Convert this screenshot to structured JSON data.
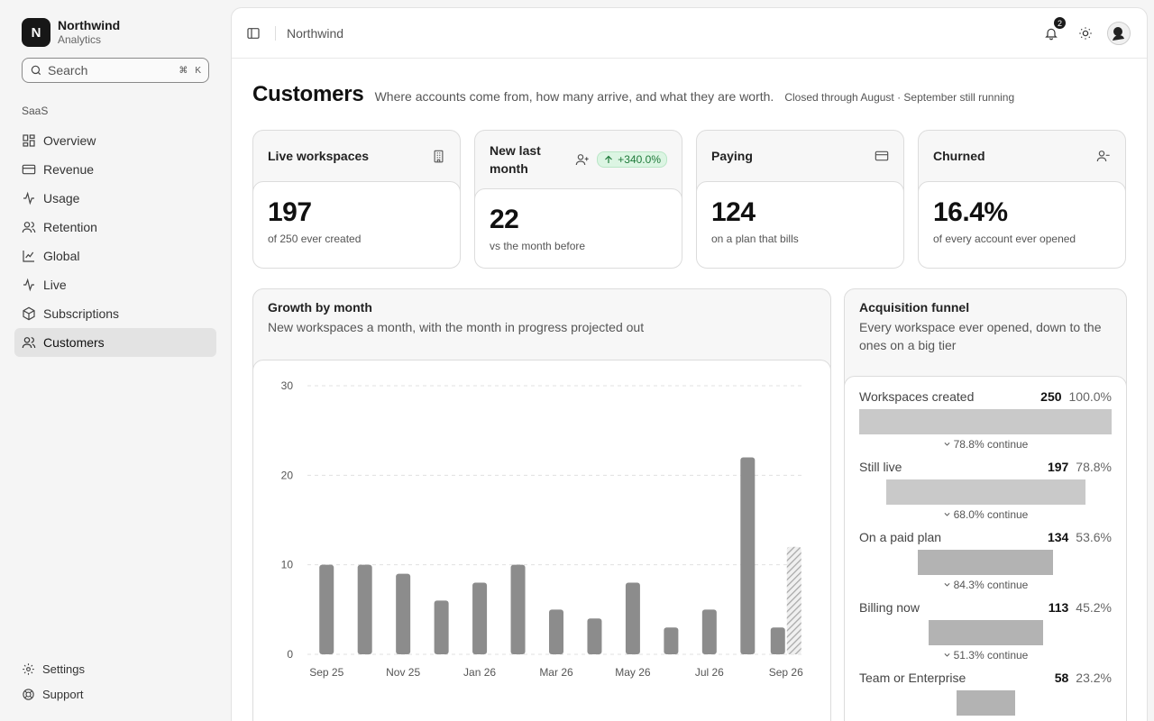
{
  "brand": {
    "initial": "N",
    "name": "Northwind",
    "sub": "Analytics"
  },
  "search": {
    "placeholder": "Search",
    "shortcut_1": "⌘",
    "shortcut_2": "K"
  },
  "sidebar": {
    "section": "SaaS",
    "items": [
      {
        "label": "Overview",
        "icon": "grid-icon"
      },
      {
        "label": "Revenue",
        "icon": "card-icon"
      },
      {
        "label": "Usage",
        "icon": "activity-icon"
      },
      {
        "label": "Retention",
        "icon": "users-icon"
      },
      {
        "label": "Global",
        "icon": "chart-line-icon"
      },
      {
        "label": "Live",
        "icon": "pulse-icon"
      },
      {
        "label": "Subscriptions",
        "icon": "box-icon"
      },
      {
        "label": "Customers",
        "icon": "users-icon",
        "active": true
      }
    ],
    "footer": [
      {
        "label": "Settings",
        "icon": "gear-icon"
      },
      {
        "label": "Support",
        "icon": "lifebuoy-icon"
      }
    ]
  },
  "topbar": {
    "breadcrumb": "Northwind",
    "notifications": "2"
  },
  "page": {
    "title": "Customers",
    "subtitle": "Where accounts come from, how many arrive, and what they are worth.",
    "note": "Closed through August · September still running"
  },
  "kpis": [
    {
      "label": "Live workspaces",
      "value": "197",
      "caption": "of 250 ever created",
      "icon": "building-icon"
    },
    {
      "label": "New last month",
      "value": "22",
      "caption": "vs the month before",
      "icon": "user-plus-icon",
      "delta": "+340.0%"
    },
    {
      "label": "Paying",
      "value": "124",
      "caption": "on a plan that bills",
      "icon": "card-icon"
    },
    {
      "label": "Churned",
      "value": "16.4%",
      "caption": "of every account ever opened",
      "icon": "user-minus-icon"
    }
  ],
  "growth": {
    "title": "Growth by month",
    "desc": "New workspaces a month, with the month in progress projected out"
  },
  "chart_data": {
    "type": "bar",
    "categories": [
      "Sep 25",
      "Oct 25",
      "Nov 25",
      "Dec 25",
      "Jan 26",
      "Feb 26",
      "Mar 26",
      "Apr 26",
      "May 26",
      "Jun 26",
      "Jul 26",
      "Aug 26",
      "Sep 26"
    ],
    "tick_labels": [
      "Sep 25",
      "Nov 25",
      "Jan 26",
      "Mar 26",
      "May 26",
      "Jul 26",
      "Sep 26"
    ],
    "values": [
      10,
      10,
      9,
      6,
      8,
      10,
      5,
      4,
      8,
      3,
      5,
      22,
      3
    ],
    "projected": {
      "category": "Sep 26",
      "value": 12
    },
    "ylim": [
      0,
      30
    ],
    "yticks": [
      0,
      10,
      20,
      30
    ],
    "grid": true,
    "bar_color": "#8c8c8c"
  },
  "funnel": {
    "title": "Acquisition funnel",
    "desc": "Every workspace ever opened, down to the ones on a big tier",
    "steps": [
      {
        "label": "Workspaces created",
        "count": "250",
        "pct": "100.0%",
        "share": 1.0,
        "continue": "78.8% continue"
      },
      {
        "label": "Still live",
        "count": "197",
        "pct": "78.8%",
        "share": 0.788,
        "continue": "68.0% continue"
      },
      {
        "label": "On a paid plan",
        "count": "134",
        "pct": "53.6%",
        "share": 0.536,
        "continue": "84.3% continue"
      },
      {
        "label": "Billing now",
        "count": "113",
        "pct": "45.2%",
        "share": 0.452,
        "continue": "51.3% continue"
      },
      {
        "label": "Team or Enterprise",
        "count": "58",
        "pct": "23.2%",
        "share": 0.232,
        "continue": ""
      }
    ]
  }
}
